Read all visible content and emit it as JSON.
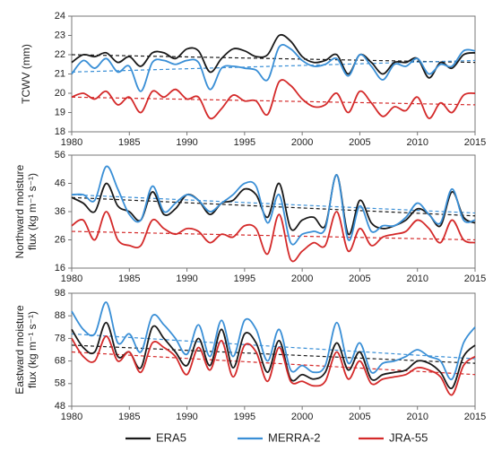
{
  "chart_data": [
    {
      "type": "line",
      "ylabel": [
        "TCWV (mm)"
      ],
      "x": [
        1980,
        1981,
        1982,
        1983,
        1984,
        1985,
        1986,
        1987,
        1988,
        1989,
        1990,
        1991,
        1992,
        1993,
        1994,
        1995,
        1996,
        1997,
        1998,
        1999,
        2000,
        2001,
        2002,
        2003,
        2004,
        2005,
        2006,
        2007,
        2008,
        2009,
        2010,
        2011,
        2012,
        2013,
        2014,
        2015
      ],
      "xlim": [
        1980,
        2015
      ],
      "xticks": [
        1980,
        1985,
        1990,
        1995,
        2000,
        2005,
        2010,
        2015
      ],
      "ylim": [
        18,
        24
      ],
      "yticks": [
        18,
        19,
        20,
        21,
        22,
        23,
        24
      ],
      "series": [
        {
          "name": "ERA5",
          "color": "#1a1a1a",
          "trend": [
            22.0,
            21.6
          ],
          "values": [
            21.6,
            22.0,
            21.9,
            22.1,
            21.6,
            21.9,
            21.4,
            22.1,
            22.1,
            21.8,
            22.3,
            22.2,
            21.1,
            21.8,
            22.3,
            22.2,
            21.9,
            22.0,
            23.0,
            22.7,
            21.9,
            21.6,
            21.7,
            22.0,
            21.0,
            22.0,
            21.6,
            21.0,
            21.6,
            21.6,
            21.8,
            20.8,
            21.6,
            21.3,
            22.0,
            22.1
          ]
        },
        {
          "name": "MERRA-2",
          "color": "#3a8fd6",
          "trend": [
            21.1,
            21.7
          ],
          "values": [
            21.0,
            21.7,
            21.3,
            21.8,
            21.1,
            21.4,
            20.1,
            21.6,
            21.7,
            21.5,
            21.7,
            21.6,
            20.2,
            21.3,
            21.4,
            21.3,
            21.2,
            20.7,
            22.4,
            22.3,
            21.7,
            21.4,
            21.5,
            21.8,
            20.9,
            22.0,
            21.4,
            20.7,
            21.5,
            21.4,
            21.8,
            21.0,
            21.5,
            21.4,
            22.2,
            22.2
          ]
        },
        {
          "name": "JRA-55",
          "color": "#d42a2a",
          "trend": [
            19.8,
            19.4
          ],
          "values": [
            19.8,
            20.0,
            19.7,
            20.1,
            19.4,
            19.8,
            19.0,
            20.1,
            19.8,
            20.2,
            19.7,
            19.8,
            18.7,
            19.2,
            19.9,
            19.6,
            19.6,
            18.9,
            20.6,
            20.4,
            19.7,
            19.3,
            19.4,
            20.0,
            19.0,
            20.1,
            19.5,
            18.8,
            19.3,
            19.1,
            19.8,
            18.7,
            19.5,
            19.0,
            19.9,
            20.0
          ]
        }
      ]
    },
    {
      "type": "line",
      "ylabel": [
        "Northward moisture",
        "flux (kg m⁻¹ s⁻¹)"
      ],
      "x": [
        1980,
        1981,
        1982,
        1983,
        1984,
        1985,
        1986,
        1987,
        1988,
        1989,
        1990,
        1991,
        1992,
        1993,
        1994,
        1995,
        1996,
        1997,
        1998,
        1999,
        2000,
        2001,
        2002,
        2003,
        2004,
        2005,
        2006,
        2007,
        2008,
        2009,
        2010,
        2011,
        2012,
        2013,
        2014,
        2015
      ],
      "xlim": [
        1980,
        2015
      ],
      "xticks": [
        1980,
        1985,
        1990,
        1995,
        2000,
        2005,
        2010,
        2015
      ],
      "ylim": [
        16,
        56
      ],
      "yticks": [
        16,
        26,
        36,
        46,
        56
      ],
      "series": [
        {
          "color": "#1a1a1a",
          "trend": [
            41,
            34.5
          ],
          "values": [
            41,
            39,
            36,
            46,
            38,
            36,
            33,
            43,
            35,
            37,
            42,
            40,
            35,
            39,
            40,
            44,
            42,
            34,
            46,
            30,
            33,
            34,
            31,
            49,
            28,
            40,
            32,
            30,
            31,
            33,
            37,
            35,
            31,
            43,
            34,
            32
          ]
        },
        {
          "color": "#3a8fd6",
          "trend": [
            42,
            35.5
          ],
          "values": [
            42,
            42,
            40,
            52,
            44,
            35,
            33,
            45,
            36,
            39,
            42,
            40,
            36,
            39,
            42,
            46,
            45,
            32,
            42,
            25,
            28,
            29,
            30,
            49,
            26,
            38,
            29,
            31,
            31,
            34,
            39,
            35,
            32,
            44,
            33,
            33
          ]
        },
        {
          "color": "#d42a2a",
          "trend": [
            29,
            26
          ],
          "values": [
            31,
            33,
            26,
            36,
            26,
            24,
            24,
            33,
            30,
            28,
            30,
            29,
            25,
            28,
            27,
            31,
            30,
            21,
            35,
            19,
            22,
            25,
            24,
            36,
            22,
            30,
            24,
            27,
            28,
            29,
            33,
            30,
            25,
            33,
            26,
            25
          ]
        }
      ]
    },
    {
      "type": "line",
      "ylabel": [
        "Eastward moisture",
        "flux (kg m⁻¹ s⁻¹)"
      ],
      "x": [
        1980,
        1981,
        1982,
        1983,
        1984,
        1985,
        1986,
        1987,
        1988,
        1989,
        1990,
        1991,
        1992,
        1993,
        1994,
        1995,
        1996,
        1997,
        1998,
        1999,
        2000,
        2001,
        2002,
        2003,
        2004,
        2005,
        2006,
        2007,
        2008,
        2009,
        2010,
        2011,
        2012,
        2013,
        2014,
        2015
      ],
      "xlim": [
        1980,
        2015
      ],
      "xticks": [
        1980,
        1985,
        1990,
        1995,
        2000,
        2005,
        2010,
        2015
      ],
      "ylim": [
        48,
        98
      ],
      "yticks": [
        48,
        58,
        68,
        78,
        88,
        98
      ],
      "series": [
        {
          "color": "#1a1a1a",
          "trend": [
            75,
            67
          ],
          "values": [
            82,
            74,
            72,
            85,
            70,
            72,
            65,
            83,
            78,
            72,
            66,
            78,
            66,
            82,
            65,
            80,
            76,
            63,
            77,
            60,
            62,
            60,
            63,
            76,
            64,
            72,
            60,
            62,
            63,
            64,
            68,
            67,
            63,
            56,
            70,
            75
          ]
        },
        {
          "color": "#3a8fd6",
          "trend": [
            80,
            69
          ],
          "values": [
            90,
            82,
            80,
            94,
            76,
            80,
            72,
            88,
            84,
            78,
            71,
            84,
            70,
            86,
            70,
            86,
            82,
            68,
            82,
            64,
            66,
            63,
            66,
            85,
            67,
            76,
            63,
            67,
            68,
            70,
            73,
            70,
            68,
            60,
            76,
            83
          ]
        },
        {
          "color": "#d42a2a",
          "trend": [
            72,
            62
          ],
          "values": [
            78,
            70,
            68,
            79,
            68,
            72,
            63,
            76,
            74,
            70,
            62,
            74,
            64,
            77,
            61,
            75,
            72,
            59,
            74,
            59,
            59,
            57,
            59,
            72,
            60,
            68,
            58,
            60,
            61,
            62,
            65,
            64,
            61,
            53,
            66,
            70
          ]
        }
      ]
    }
  ]
}
